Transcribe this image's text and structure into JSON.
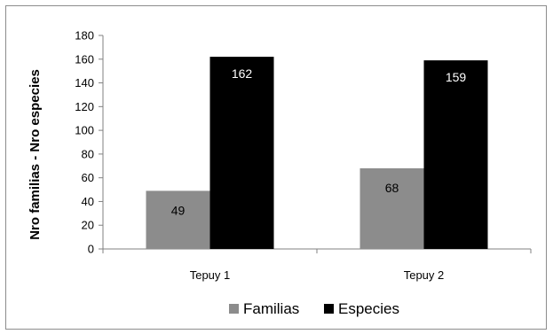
{
  "chart_data": {
    "type": "bar",
    "title": "",
    "ylabel": "Nro familias - Nro especies",
    "xlabel": "",
    "categories": [
      "Tepuy 1",
      "Tepuy 2"
    ],
    "ylim": [
      0,
      180
    ],
    "yticks": [
      0,
      20,
      40,
      60,
      80,
      100,
      120,
      140,
      160,
      180
    ],
    "grid": false,
    "legend_position": "bottom",
    "series": [
      {
        "name": "Familias",
        "values": [
          49,
          68
        ],
        "color": "#8c8c8c",
        "label_color": "#000000"
      },
      {
        "name": "Especies",
        "values": [
          162,
          159
        ],
        "color": "#000000",
        "label_color": "#ffffff"
      }
    ]
  }
}
